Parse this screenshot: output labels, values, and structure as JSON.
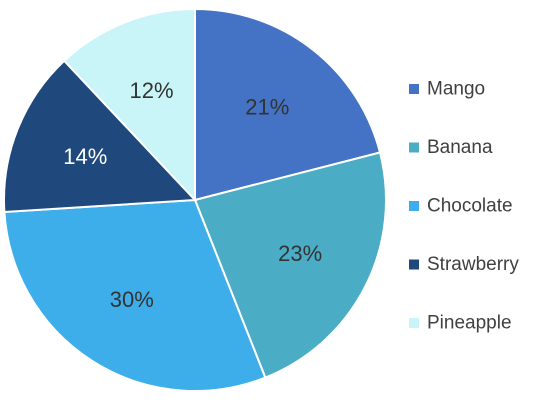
{
  "chart_data": {
    "type": "pie",
    "title": "",
    "legend_position": "right",
    "slices": [
      {
        "name": "Mango",
        "value": 21,
        "label": "21%",
        "color": "#4472C4",
        "label_color": "#333333"
      },
      {
        "name": "Banana",
        "value": 23,
        "label": "23%",
        "color": "#4BACC6",
        "label_color": "#333333"
      },
      {
        "name": "Chocolate",
        "value": 30,
        "label": "30%",
        "color": "#3DAEEA",
        "label_color": "#333333"
      },
      {
        "name": "Strawberry",
        "value": 14,
        "label": "14%",
        "color": "#1F497D",
        "label_color": "#ffffff"
      },
      {
        "name": "Pineapple",
        "value": 12,
        "label": "12%",
        "color": "#C9F5F8",
        "label_color": "#333333"
      }
    ]
  }
}
